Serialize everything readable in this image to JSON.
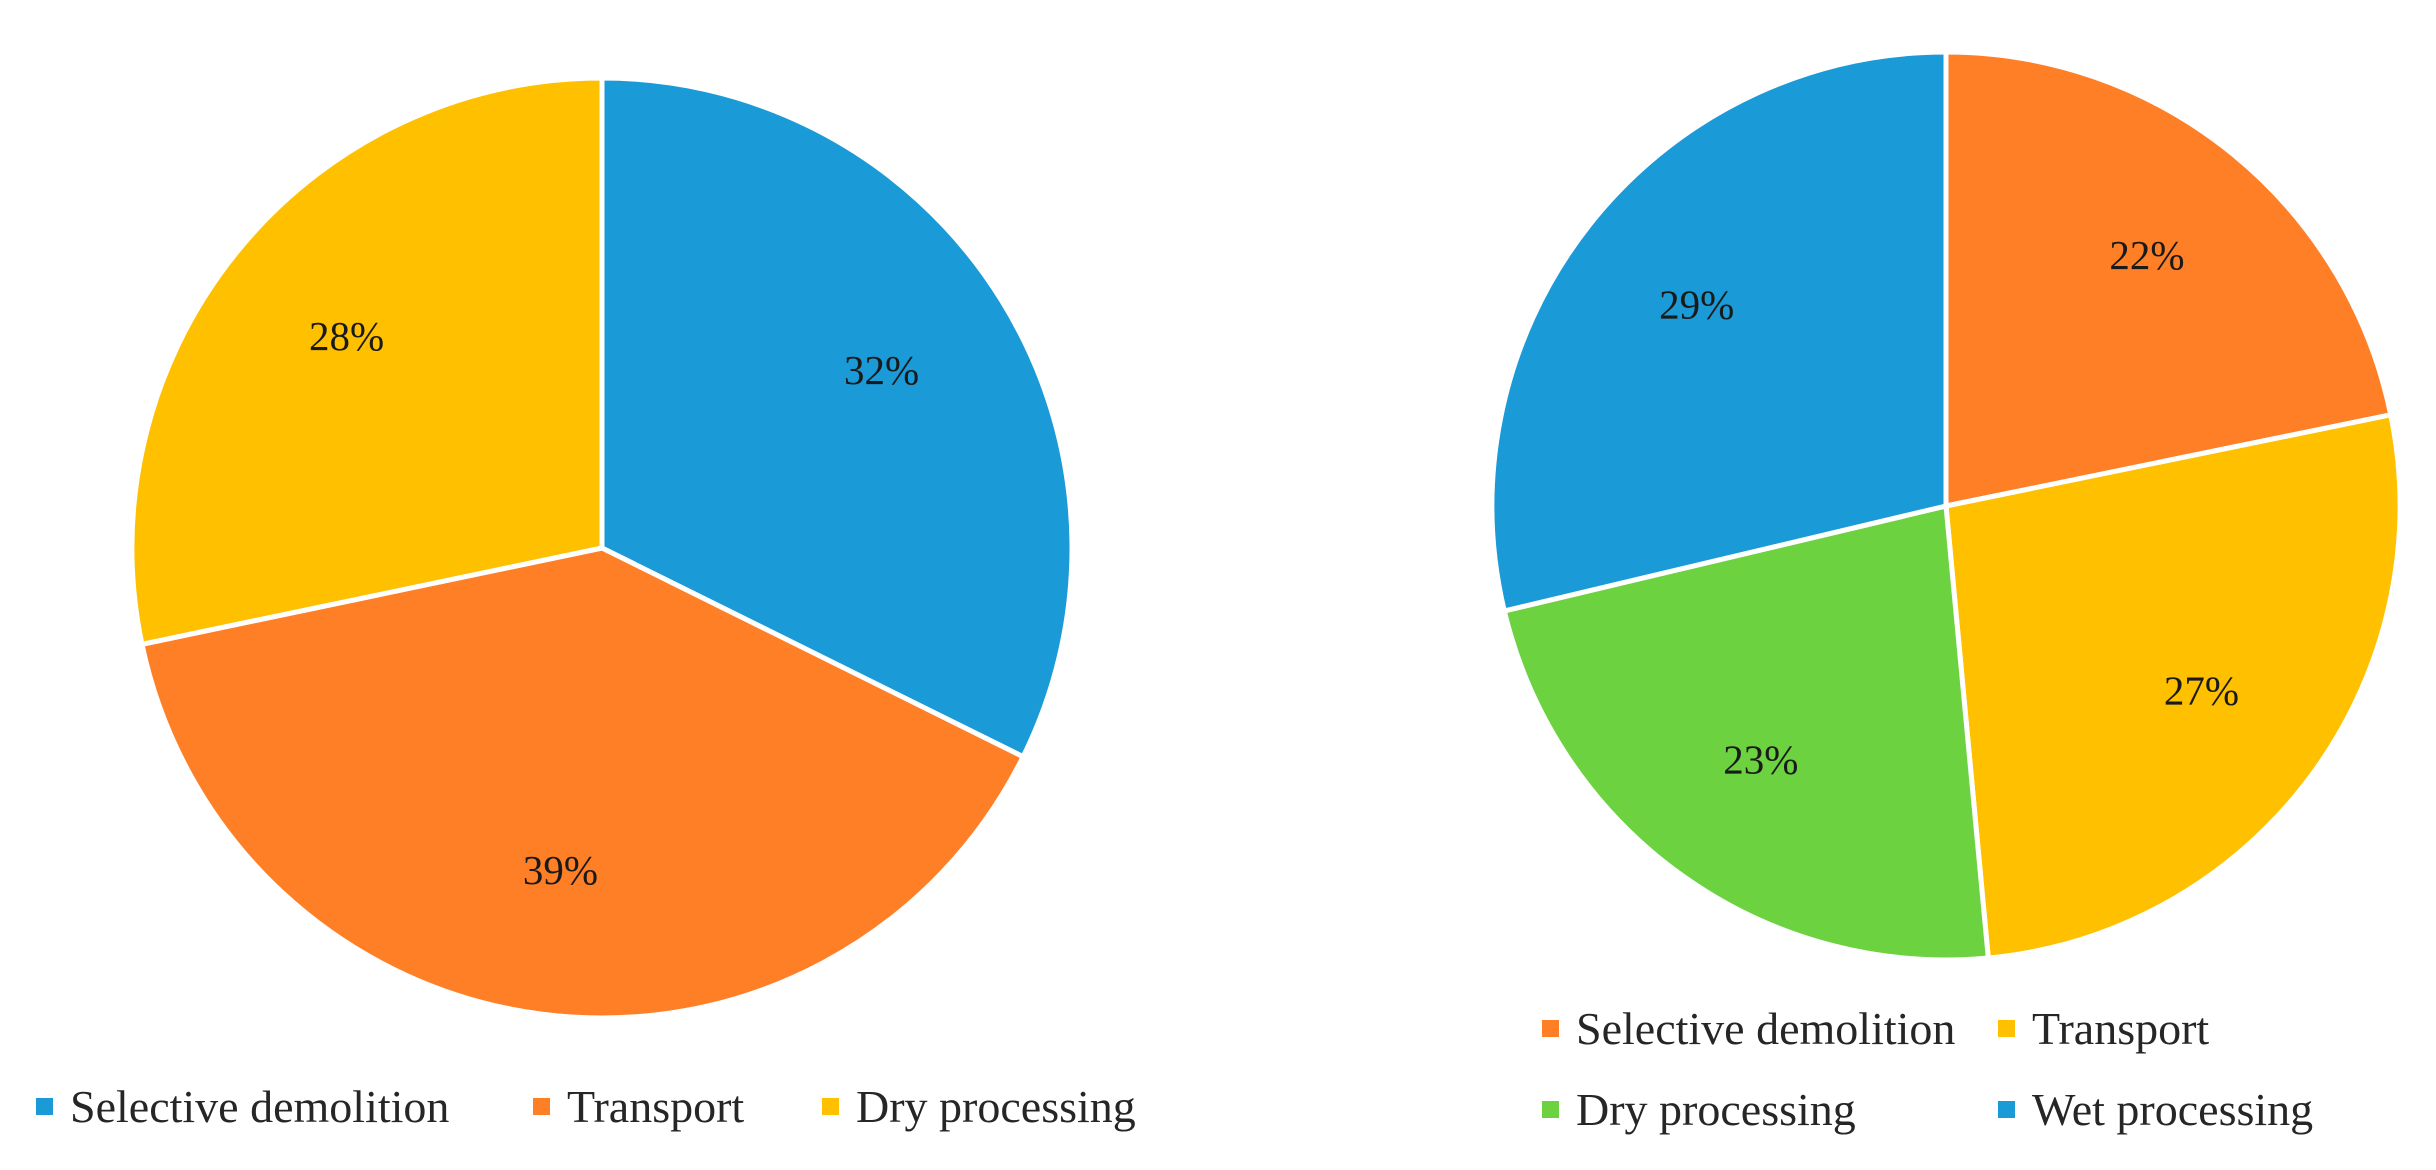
{
  "chart_data": [
    {
      "type": "pie",
      "title": "",
      "series": [
        {
          "name": "Selective demolition",
          "value": 32,
          "label": "32%",
          "color": "#1A9AD6"
        },
        {
          "name": "Transport",
          "value": 39,
          "label": "39%",
          "color": "#FF7F27"
        },
        {
          "name": "Dry processing",
          "value": 28,
          "label": "28%",
          "color": "#FFC000"
        }
      ],
      "legend": {
        "position": "bottom",
        "items": [
          {
            "name": "Selective demolition",
            "color": "#1A9AD6"
          },
          {
            "name": "Transport",
            "color": "#FF7F27"
          },
          {
            "name": "Dry processing",
            "color": "#FFC000"
          }
        ]
      }
    },
    {
      "type": "pie",
      "title": "",
      "series": [
        {
          "name": "Selective demolition",
          "value": 22,
          "label": "22%",
          "color": "#FF7F27"
        },
        {
          "name": "Transport",
          "value": 27,
          "label": "27%",
          "color": "#FFC000"
        },
        {
          "name": "Dry processing",
          "value": 23,
          "label": "23%",
          "color": "#6CD240"
        },
        {
          "name": "Wet processing",
          "value": 29,
          "label": "29%",
          "color": "#1A9AD6"
        }
      ],
      "legend": {
        "position": "bottom",
        "items": [
          {
            "name": "Selective demolition",
            "color": "#FF7F27"
          },
          {
            "name": "Transport",
            "color": "#FFC000"
          },
          {
            "name": "Dry processing",
            "color": "#6CD240"
          },
          {
            "name": "Wet processing",
            "color": "#1A9AD6"
          }
        ]
      }
    }
  ]
}
